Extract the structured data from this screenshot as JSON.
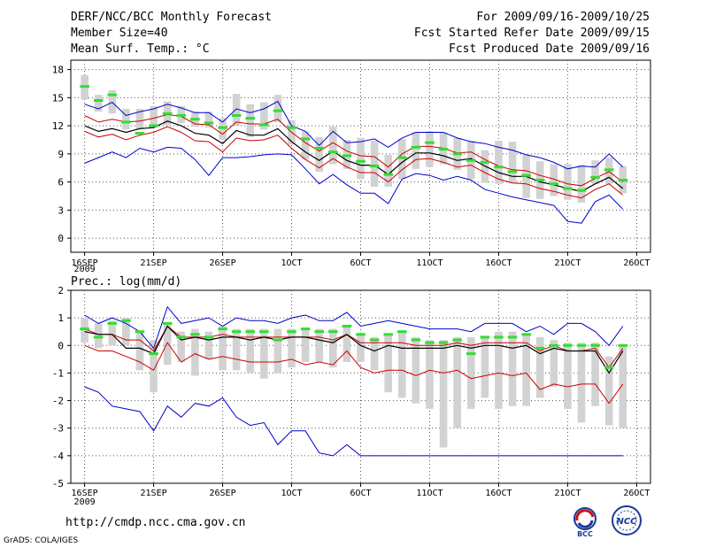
{
  "header": {
    "title": "DERF/NCC/BCC Monthly Forecast",
    "member_size": "Member Size=40",
    "variable_temp": "Mean Surf. Temp.: °C",
    "period": "For 2009/09/16-2009/10/25",
    "start_date": "Fcst Started Refer Date 2009/09/15",
    "produced_date": "Fcst Produced Date 2009/09/16"
  },
  "footer": {
    "url": "http://cmdp.ncc.cma.gov.cn",
    "grads": "GrADS: COLA/IGES",
    "logo_left_text": "BCC",
    "logo_right_text": "NCC"
  },
  "colors": {
    "ens_bar": "#d2d2d2",
    "median": "#33dd33",
    "mean": "#000000",
    "inner": "#cc0000",
    "outer": "#0000cc",
    "grid": "#555555"
  },
  "chart_data": [
    {
      "type": "line",
      "title": "Mean Surf. Temp.: °C",
      "ylim": [
        -1.5,
        19
      ],
      "yticks": [
        0,
        3,
        6,
        9,
        12,
        15,
        18
      ],
      "xticks": [
        {
          "label": "16SEP",
          "day": 1
        },
        {
          "label": "21SEP",
          "day": 6
        },
        {
          "label": "26SEP",
          "day": 11
        },
        {
          "label": "1OCT",
          "day": 16
        },
        {
          "label": "6OCT",
          "day": 21
        },
        {
          "label": "11OCT",
          "day": 26
        },
        {
          "label": "16OCT",
          "day": 31
        },
        {
          "label": "21OCT",
          "day": 36
        },
        {
          "label": "26OCT",
          "day": 41
        }
      ],
      "year_label": "2009",
      "x": [
        1,
        2,
        3,
        4,
        5,
        6,
        7,
        8,
        9,
        10,
        11,
        12,
        13,
        14,
        15,
        16,
        17,
        18,
        19,
        20,
        21,
        22,
        23,
        24,
        25,
        26,
        27,
        28,
        29,
        30,
        31,
        32,
        33,
        34,
        35,
        36,
        37,
        38,
        39,
        40
      ],
      "series": [
        {
          "name": "ensemble max",
          "values": [
            17.4,
            15.3,
            15.8,
            13.8,
            13.8,
            14.1,
            14.6,
            14.1,
            13.5,
            13.5,
            12.8,
            15.4,
            14.3,
            14.5,
            15.3,
            12.6,
            11.4,
            10.8,
            11.9,
            10.5,
            10.7,
            10.4,
            8.9,
            10.6,
            11.3,
            11.4,
            11.3,
            10.7,
            10.4,
            9.4,
            10.4,
            10.3,
            8.9,
            8.2,
            7.9,
            7.9,
            7.8,
            8.3,
            8.6,
            7.7
          ]
        },
        {
          "name": "ensemble min",
          "values": [
            14.8,
            13.5,
            13.3,
            11.6,
            11.6,
            11.8,
            12.1,
            12.3,
            11.9,
            11.8,
            10.5,
            12.0,
            10.8,
            11.6,
            12.4,
            10.0,
            8.4,
            7.1,
            7.9,
            7.4,
            6.3,
            5.5,
            5.5,
            6.3,
            7.4,
            7.6,
            7.9,
            7.3,
            6.3,
            5.9,
            5.8,
            5.9,
            4.3,
            4.2,
            4.5,
            4.1,
            3.8,
            5.8,
            5.8,
            4.8
          ]
        },
        {
          "name": "median",
          "values": [
            16.2,
            14.7,
            15.3,
            12.4,
            11.2,
            12.0,
            13.3,
            13.1,
            12.7,
            12.3,
            11.8,
            13.1,
            12.8,
            12.1,
            13.6,
            11.8,
            10.6,
            9.6,
            9.2,
            8.8,
            8.2,
            7.7,
            6.8,
            8.6,
            9.7,
            10.2,
            9.5,
            9.0,
            8.3,
            8.1,
            7.6,
            7.1,
            6.7,
            6.2,
            5.8,
            5.3,
            5.1,
            6.5,
            7.3,
            6.2
          ]
        },
        {
          "name": "ensemble mean",
          "values": [
            12.0,
            11.4,
            11.7,
            11.3,
            11.7,
            11.8,
            12.5,
            12.0,
            11.2,
            11.0,
            10.1,
            11.5,
            11.0,
            11.0,
            11.7,
            10.3,
            9.2,
            8.3,
            9.3,
            8.3,
            7.8,
            7.8,
            6.8,
            8.1,
            9.1,
            9.1,
            8.8,
            8.3,
            8.5,
            7.7,
            7.0,
            6.6,
            6.6,
            6.0,
            5.7,
            5.3,
            5.0,
            5.8,
            6.5,
            5.3
          ]
        },
        {
          "name": "mean + spread",
          "values": [
            13.1,
            12.4,
            12.7,
            12.4,
            12.5,
            12.8,
            13.2,
            13.0,
            12.2,
            12.1,
            11.1,
            12.4,
            12.2,
            12.2,
            12.7,
            11.3,
            10.2,
            9.3,
            10.2,
            9.3,
            8.8,
            8.7,
            7.6,
            9.0,
            9.8,
            9.8,
            9.6,
            9.1,
            9.2,
            8.4,
            7.7,
            7.3,
            7.2,
            6.7,
            6.3,
            5.8,
            5.6,
            6.4,
            7.1,
            6.0
          ]
        },
        {
          "name": "mean - spread",
          "values": [
            11.4,
            10.8,
            11.1,
            10.5,
            11.0,
            11.3,
            11.9,
            11.3,
            10.4,
            10.3,
            9.2,
            10.7,
            10.4,
            10.5,
            11.0,
            9.6,
            8.4,
            7.5,
            8.5,
            7.6,
            7.0,
            7.0,
            6.0,
            7.3,
            8.4,
            8.5,
            8.1,
            7.6,
            7.8,
            7.0,
            6.3,
            5.9,
            5.8,
            5.3,
            5.0,
            4.6,
            4.3,
            5.2,
            5.8,
            4.6
          ]
        },
        {
          "name": "upper envelope",
          "values": [
            14.3,
            13.8,
            14.5,
            13.1,
            13.5,
            13.8,
            14.3,
            13.9,
            13.4,
            13.4,
            12.4,
            13.8,
            13.4,
            13.8,
            14.6,
            12.0,
            11.4,
            9.9,
            11.4,
            10.2,
            10.3,
            10.6,
            9.7,
            10.7,
            11.3,
            11.3,
            11.3,
            10.7,
            10.3,
            10.1,
            9.7,
            9.4,
            8.9,
            8.6,
            8.1,
            7.4,
            7.7,
            7.6,
            9.0,
            7.6
          ]
        },
        {
          "name": "lower envelope",
          "values": [
            8.0,
            8.6,
            9.2,
            8.6,
            9.6,
            9.2,
            9.7,
            9.6,
            8.4,
            6.7,
            8.6,
            8.6,
            8.7,
            8.9,
            9.0,
            8.9,
            7.4,
            5.8,
            6.8,
            5.7,
            4.8,
            4.8,
            3.7,
            6.3,
            6.9,
            6.7,
            6.2,
            6.6,
            6.2,
            5.2,
            4.8,
            4.4,
            4.1,
            3.8,
            3.5,
            1.8,
            1.6,
            3.9,
            4.6,
            3.1
          ]
        }
      ]
    },
    {
      "type": "line",
      "title": "Prec.: log(mm/d)",
      "ylim": [
        -5,
        2
      ],
      "yticks": [
        -5,
        -4,
        -3,
        -2,
        -1,
        0,
        1,
        2
      ],
      "xticks": [
        {
          "label": "16SEP",
          "day": 1
        },
        {
          "label": "21SEP",
          "day": 6
        },
        {
          "label": "26SEP",
          "day": 11
        },
        {
          "label": "1OCT",
          "day": 16
        },
        {
          "label": "6OCT",
          "day": 21
        },
        {
          "label": "11OCT",
          "day": 26
        },
        {
          "label": "16OCT",
          "day": 31
        },
        {
          "label": "21OCT",
          "day": 36
        },
        {
          "label": "26OCT",
          "day": 41
        }
      ],
      "year_label": "2009",
      "x": [
        1,
        2,
        3,
        4,
        5,
        6,
        7,
        8,
        9,
        10,
        11,
        12,
        13,
        14,
        15,
        16,
        17,
        18,
        19,
        20,
        21,
        22,
        23,
        24,
        25,
        26,
        27,
        28,
        29,
        30,
        31,
        32,
        33,
        34,
        35,
        36,
        37,
        38,
        39,
        40
      ],
      "series": [
        {
          "name": "ensemble max",
          "values": [
            1.0,
            0.8,
            0.9,
            1.0,
            0.5,
            0.2,
            0.8,
            0.5,
            0.6,
            0.5,
            0.7,
            0.6,
            0.6,
            0.6,
            0.6,
            0.6,
            0.6,
            0.6,
            0.6,
            0.7,
            0.4,
            0.3,
            0.4,
            0.5,
            0.3,
            0.2,
            0.2,
            0.3,
            0.3,
            0.3,
            0.5,
            0.5,
            0.4,
            0.3,
            0.2,
            0.1,
            0.1,
            0.1,
            -0.4,
            0.0
          ]
        },
        {
          "name": "ensemble min",
          "values": [
            0.1,
            -0.1,
            0.0,
            0.0,
            -0.9,
            -1.7,
            -0.7,
            -0.6,
            -1.1,
            -0.5,
            -0.9,
            -0.9,
            -1.0,
            -1.2,
            -1.0,
            -0.8,
            -0.6,
            -0.6,
            -0.8,
            -0.6,
            -0.6,
            -0.9,
            -1.7,
            -1.9,
            -2.1,
            -2.3,
            -3.7,
            -3.0,
            -2.3,
            -1.9,
            -2.3,
            -2.2,
            -2.2,
            -1.9,
            -1.5,
            -2.3,
            -2.8,
            -2.2,
            -2.9,
            -3.0
          ]
        },
        {
          "name": "median",
          "values": [
            0.6,
            0.3,
            0.8,
            0.9,
            0.5,
            -0.3,
            0.8,
            0.3,
            0.4,
            0.3,
            0.6,
            0.5,
            0.5,
            0.5,
            0.2,
            0.5,
            0.6,
            0.5,
            0.5,
            0.7,
            0.4,
            0.2,
            0.4,
            0.5,
            0.2,
            0.1,
            0.1,
            0.2,
            -0.3,
            0.3,
            0.3,
            0.3,
            0.4,
            -0.1,
            0.0,
            0.0,
            0.0,
            0.0,
            -0.8,
            0.0
          ]
        },
        {
          "name": "ensemble mean",
          "values": [
            0.5,
            0.4,
            0.4,
            -0.1,
            -0.1,
            -0.3,
            0.7,
            0.2,
            0.3,
            0.2,
            0.3,
            0.3,
            0.2,
            0.3,
            0.2,
            0.3,
            0.3,
            0.2,
            0.1,
            0.4,
            0.0,
            -0.2,
            0.0,
            -0.1,
            -0.1,
            -0.1,
            -0.1,
            0.0,
            -0.1,
            0.0,
            0.0,
            -0.1,
            0.0,
            -0.3,
            -0.1,
            -0.2,
            -0.2,
            -0.2,
            -1.0,
            -0.2
          ]
        },
        {
          "name": "mean + spread",
          "values": [
            0.6,
            0.4,
            0.4,
            0.2,
            0.2,
            -0.2,
            0.7,
            0.3,
            0.3,
            0.3,
            0.4,
            0.3,
            0.3,
            0.3,
            0.3,
            0.3,
            0.3,
            0.3,
            0.2,
            0.4,
            0.1,
            0.1,
            0.1,
            0.1,
            0.0,
            0.0,
            0.0,
            0.1,
            0.0,
            0.1,
            0.1,
            0.1,
            0.1,
            -0.2,
            0.0,
            -0.2,
            -0.2,
            -0.1,
            -0.8,
            -0.1
          ]
        },
        {
          "name": "mean - spread",
          "values": [
            0.0,
            -0.2,
            -0.2,
            -0.4,
            -0.6,
            -0.9,
            0.1,
            -0.6,
            -0.3,
            -0.5,
            -0.4,
            -0.5,
            -0.6,
            -0.6,
            -0.6,
            -0.5,
            -0.7,
            -0.6,
            -0.7,
            -0.2,
            -0.8,
            -1.0,
            -0.9,
            -0.9,
            -1.1,
            -0.9,
            -1.0,
            -0.9,
            -1.2,
            -1.1,
            -1.0,
            -1.1,
            -1.0,
            -1.6,
            -1.4,
            -1.5,
            -1.4,
            -1.4,
            -2.1,
            -1.4
          ]
        },
        {
          "name": "upper envelope",
          "values": [
            1.1,
            0.8,
            1.0,
            0.8,
            0.5,
            -0.1,
            1.4,
            0.8,
            0.9,
            1.0,
            0.7,
            1.0,
            0.9,
            0.9,
            0.8,
            1.0,
            1.1,
            0.9,
            0.9,
            1.2,
            0.7,
            0.8,
            0.9,
            0.8,
            0.7,
            0.6,
            0.6,
            0.6,
            0.5,
            0.8,
            0.8,
            0.8,
            0.5,
            0.7,
            0.4,
            0.8,
            0.8,
            0.5,
            0.0,
            0.7
          ]
        },
        {
          "name": "lower envelope",
          "values": [
            -1.5,
            -1.7,
            -2.2,
            -2.3,
            -2.4,
            -3.1,
            -2.2,
            -2.6,
            -2.1,
            -2.2,
            -1.9,
            -2.6,
            -2.9,
            -2.8,
            -3.6,
            -3.1,
            -3.1,
            -3.9,
            -4.0,
            -3.6,
            -4.0,
            -4.0,
            -4.0,
            -4.0,
            -4.0,
            -4.0,
            -4.0,
            -4.0,
            -4.0,
            -4.0,
            -4.0,
            -4.0,
            -4.0,
            -4.0,
            -4.0,
            -4.0,
            -4.0,
            -4.0,
            -4.0,
            -4.0
          ]
        }
      ]
    }
  ]
}
